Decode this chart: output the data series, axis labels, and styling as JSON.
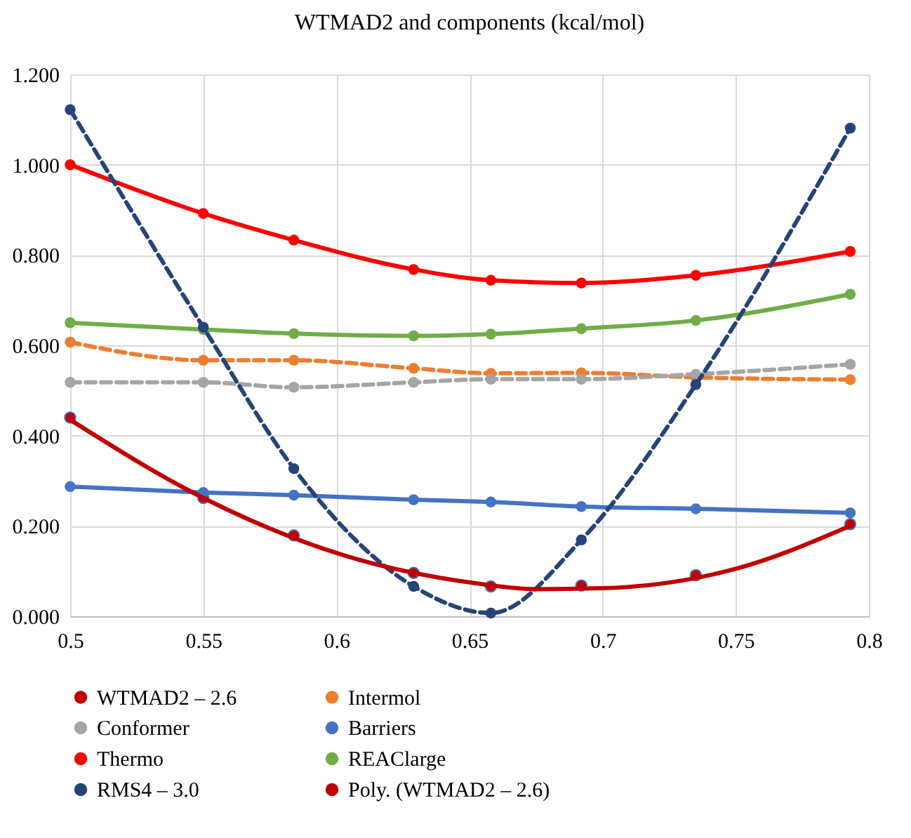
{
  "chart_data": {
    "type": "line",
    "title": "WTMAD2 and components (kcal/mol)",
    "x": [
      0.5,
      0.55,
      0.584,
      0.629,
      0.658,
      0.692,
      0.735,
      0.793
    ],
    "xlim": [
      0.5,
      0.8
    ],
    "xticks": [
      0.5,
      0.55,
      0.6,
      0.65,
      0.7,
      0.75,
      0.8
    ],
    "ylim": [
      0,
      1.2
    ],
    "yticks": [
      {
        "value": 0,
        "label": "0.000"
      },
      {
        "value": 0.2,
        "label": "0.200"
      },
      {
        "value": 0.4,
        "label": "0.400"
      },
      {
        "value": 0.6,
        "label": "0.600"
      },
      {
        "value": 0.8,
        "label": "0.800"
      },
      {
        "value": 1.0,
        "label": "1.000"
      },
      {
        "value": 1.2,
        "label": "1.200"
      }
    ],
    "grid": true,
    "legend": "bottom",
    "series": [
      {
        "name": "WTMAD2 – 2.6",
        "type": "scatter",
        "color": "#c00000",
        "marker": "circle",
        "values": [
          0.44,
          0.262,
          0.179,
          0.096,
          0.066,
          0.068,
          0.091,
          0.204
        ]
      },
      {
        "name": "Intermol",
        "color": "#ed7d31",
        "marker": "circle",
        "line_style": "dashed",
        "values": [
          0.607,
          0.567,
          0.567,
          0.549,
          0.538,
          0.539,
          0.529,
          0.524
        ]
      },
      {
        "name": "Conformer",
        "color": "#a5a5a5",
        "marker": "circle",
        "line_style": "dashed",
        "values": [
          0.518,
          0.518,
          0.507,
          0.518,
          0.525,
          0.525,
          0.536,
          0.558
        ]
      },
      {
        "name": "Barriers",
        "color": "#4472c4",
        "marker": "circle",
        "line_style": "solid",
        "values": [
          0.287,
          0.274,
          0.268,
          0.258,
          0.253,
          0.243,
          0.238,
          0.229
        ]
      },
      {
        "name": "Thermo",
        "color": "#ff0000",
        "marker": "circle",
        "line_style": "solid",
        "values": [
          1.0,
          0.892,
          0.833,
          0.768,
          0.744,
          0.738,
          0.755,
          0.808
        ]
      },
      {
        "name": "REAClarge",
        "color": "#70ad47",
        "marker": "circle",
        "line_style": "solid",
        "values": [
          0.65,
          0.635,
          0.626,
          0.621,
          0.625,
          0.637,
          0.655,
          0.713
        ]
      },
      {
        "name": "RMS4 – 3.0",
        "color": "#264478",
        "marker": "circle",
        "line_style": "dashed",
        "values": [
          1.122,
          0.64,
          0.327,
          0.066,
          0.007,
          0.169,
          0.513,
          1.081
        ]
      },
      {
        "name": "Poly. (WTMAD2 – 2.6)",
        "color": "#c00000",
        "marker": "none",
        "line_style": "solid",
        "x": [
          0.5,
          0.55,
          0.6,
          0.65,
          0.675,
          0.7,
          0.75,
          0.793
        ],
        "values": [
          0.435,
          0.262,
          0.14,
          0.075,
          0.06,
          0.062,
          0.105,
          0.2
        ]
      }
    ]
  }
}
